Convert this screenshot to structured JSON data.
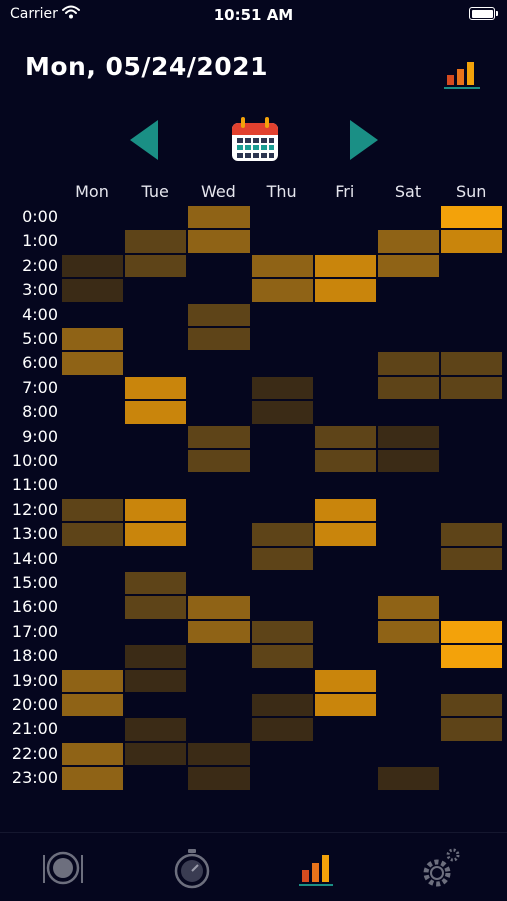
{
  "status_bar": {
    "carrier": "Carrier",
    "time": "10:51 AM"
  },
  "header": {
    "date": "Mon, 05/24/2021"
  },
  "icons": {
    "stats": "bar-chart-icon",
    "prev": "triangle-left-icon",
    "calendar": "calendar-icon",
    "next": "triangle-right-icon"
  },
  "days": [
    "Mon",
    "Tue",
    "Wed",
    "Thu",
    "Fri",
    "Sat",
    "Sun"
  ],
  "hours": [
    "0:00",
    "1:00",
    "2:00",
    "3:00",
    "4:00",
    "5:00",
    "6:00",
    "7:00",
    "8:00",
    "9:00",
    "10:00",
    "11:00",
    "12:00",
    "13:00",
    "14:00",
    "15:00",
    "16:00",
    "17:00",
    "18:00",
    "19:00",
    "20:00",
    "21:00",
    "22:00",
    "23:00"
  ],
  "heatmap": [
    [
      0,
      0,
      3,
      0,
      0,
      0,
      5
    ],
    [
      0,
      2,
      3,
      0,
      0,
      3,
      4
    ],
    [
      1,
      2,
      0,
      3,
      4,
      3,
      0
    ],
    [
      1,
      0,
      0,
      3,
      4,
      0,
      0
    ],
    [
      0,
      0,
      2,
      0,
      0,
      0,
      0
    ],
    [
      3,
      0,
      2,
      0,
      0,
      0,
      0
    ],
    [
      3,
      0,
      0,
      0,
      0,
      2,
      2
    ],
    [
      0,
      4,
      0,
      1,
      0,
      2,
      2
    ],
    [
      0,
      4,
      0,
      1,
      0,
      0,
      0
    ],
    [
      0,
      0,
      2,
      0,
      2,
      1,
      0
    ],
    [
      0,
      0,
      2,
      0,
      2,
      1,
      0
    ],
    [
      0,
      0,
      0,
      0,
      0,
      0,
      0
    ],
    [
      2,
      4,
      0,
      0,
      4,
      0,
      0
    ],
    [
      2,
      4,
      0,
      2,
      4,
      0,
      2
    ],
    [
      0,
      0,
      0,
      2,
      0,
      0,
      2
    ],
    [
      0,
      2,
      0,
      0,
      0,
      0,
      0
    ],
    [
      0,
      2,
      3,
      0,
      0,
      3,
      0
    ],
    [
      0,
      0,
      3,
      2,
      0,
      3,
      5
    ],
    [
      0,
      1,
      0,
      2,
      0,
      0,
      5
    ],
    [
      3,
      1,
      0,
      0,
      4,
      0,
      0
    ],
    [
      3,
      0,
      0,
      1,
      4,
      0,
      2
    ],
    [
      0,
      1,
      0,
      1,
      0,
      0,
      2
    ],
    [
      3,
      1,
      1,
      0,
      0,
      0,
      0
    ],
    [
      3,
      0,
      1,
      0,
      0,
      1,
      0
    ]
  ],
  "colors": {
    "background": "#05061e",
    "accent_teal": "#1a8f85",
    "levels": [
      "",
      "#3b2b16",
      "#5e4418",
      "#8f6316",
      "#c9850c",
      "#f3a20a"
    ]
  },
  "tabs": [
    {
      "name": "tab-meals",
      "icon": "plate-icon"
    },
    {
      "name": "tab-timer",
      "icon": "stopwatch-icon"
    },
    {
      "name": "tab-stats",
      "icon": "bar-chart-icon",
      "active": true
    },
    {
      "name": "tab-settings",
      "icon": "gear-icon"
    }
  ]
}
